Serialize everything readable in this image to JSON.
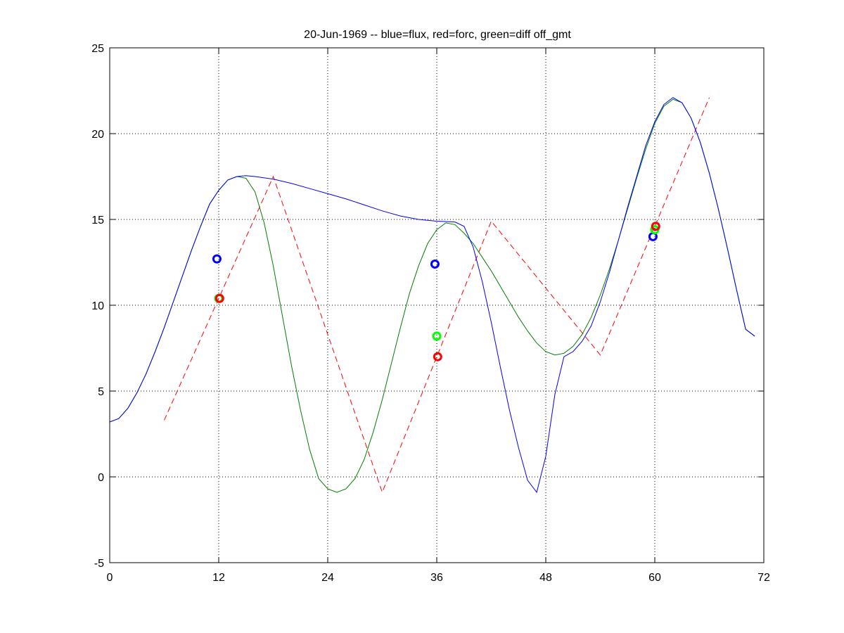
{
  "chart_data": {
    "type": "line",
    "title": "20-Jun-1969 -- blue=flux, red=forc, green=diff off_gmt",
    "xlabel": "",
    "ylabel": "",
    "xlim": [
      0,
      72
    ],
    "ylim": [
      -5,
      25
    ],
    "xticks": [
      0,
      12,
      24,
      36,
      48,
      60,
      72
    ],
    "yticks": [
      -5,
      0,
      5,
      10,
      15,
      20,
      25
    ],
    "grid": true,
    "grid_x_values": [
      12,
      24,
      36,
      48,
      60
    ],
    "grid_y_values": [
      0,
      5,
      10,
      15,
      20
    ],
    "colors": {
      "flux": "#0000ff",
      "forc": "#ff0000",
      "diff": "#008000",
      "diff_marker": "#00ff00",
      "axes": "#000000",
      "grid": "#000000"
    },
    "series": [
      {
        "key": "flux",
        "style": "solid",
        "color": "#0000ff",
        "x": [
          0,
          1,
          2,
          3,
          4,
          5,
          6,
          7,
          8,
          9,
          10,
          11,
          12,
          13,
          14,
          15,
          16,
          18,
          20,
          22,
          24,
          26,
          28,
          30,
          32,
          34,
          36,
          38,
          39,
          40,
          41,
          42,
          43,
          44,
          45,
          46,
          47,
          48,
          48.5,
          49,
          50,
          51,
          52,
          53,
          54,
          55,
          56,
          57,
          58,
          59,
          60,
          61,
          62,
          63,
          64,
          65,
          66,
          67,
          68,
          69,
          70,
          71
        ],
        "y": [
          3.2,
          3.4,
          4.0,
          4.9,
          6.0,
          7.3,
          8.7,
          10.2,
          11.7,
          13.2,
          14.6,
          15.9,
          16.7,
          17.3,
          17.5,
          17.55,
          17.5,
          17.35,
          17.1,
          16.8,
          16.5,
          16.2,
          15.85,
          15.5,
          15.2,
          15.0,
          14.9,
          14.85,
          14.6,
          13.4,
          11.4,
          9.0,
          6.4,
          3.9,
          1.7,
          -0.2,
          -0.9,
          1.2,
          3.0,
          4.8,
          7.0,
          7.3,
          7.9,
          8.8,
          10.2,
          11.9,
          13.8,
          15.7,
          17.5,
          19.3,
          20.7,
          21.7,
          22.1,
          21.8,
          20.9,
          19.5,
          17.7,
          15.6,
          13.3,
          10.9,
          8.6,
          8.2
        ]
      },
      {
        "key": "forc",
        "style": "dashed",
        "color": "#ff0000",
        "x": [
          6,
          18,
          30,
          42,
          54,
          66
        ],
        "y": [
          3.3,
          17.5,
          -0.9,
          14.9,
          7.1,
          22.1
        ]
      },
      {
        "key": "diff",
        "style": "solid",
        "color": "#008000",
        "x": [
          0,
          1,
          2,
          3,
          4,
          5,
          6,
          7,
          8,
          9,
          10,
          11,
          12,
          13,
          14,
          15,
          16,
          17,
          18,
          19,
          20,
          21,
          22,
          23,
          24,
          25,
          26,
          27,
          28,
          29,
          30,
          31,
          32,
          33,
          34,
          35,
          36,
          37,
          38,
          39,
          40,
          41,
          42,
          43,
          44,
          45,
          46,
          47,
          48,
          49,
          50,
          51,
          52,
          53,
          54,
          55,
          56,
          57,
          58,
          59,
          60,
          61,
          62,
          63,
          64,
          65,
          66,
          67,
          68,
          69,
          70,
          71
        ],
        "y": [
          3.2,
          3.4,
          4.0,
          4.9,
          6.0,
          7.3,
          8.7,
          10.2,
          11.7,
          13.2,
          14.6,
          15.9,
          16.7,
          17.3,
          17.5,
          17.4,
          16.6,
          14.8,
          12.3,
          9.4,
          6.5,
          3.9,
          1.6,
          -0.1,
          -0.7,
          -0.9,
          -0.7,
          -0.1,
          1.0,
          2.6,
          4.5,
          6.6,
          8.7,
          10.7,
          12.3,
          13.6,
          14.4,
          14.8,
          14.7,
          14.2,
          13.6,
          12.8,
          12.0,
          11.1,
          10.2,
          9.3,
          8.5,
          7.8,
          7.3,
          7.1,
          7.2,
          7.6,
          8.3,
          9.3,
          10.6,
          12.1,
          13.8,
          15.6,
          17.4,
          19.1,
          20.6,
          21.6,
          22.0,
          21.8,
          20.9,
          19.5,
          17.7,
          15.6,
          13.3,
          10.9,
          8.6,
          8.2
        ]
      }
    ],
    "markers": [
      {
        "series": "flux",
        "color": "#0000ff",
        "x": 11.8,
        "y": 12.7
      },
      {
        "series": "diff",
        "color": "#00ff00",
        "x": 12.0,
        "y": 10.4
      },
      {
        "series": "forc",
        "color": "#ff0000",
        "x": 12.1,
        "y": 10.4
      },
      {
        "series": "flux",
        "color": "#0000ff",
        "x": 35.8,
        "y": 12.4
      },
      {
        "series": "diff",
        "color": "#00ff00",
        "x": 36.0,
        "y": 8.2
      },
      {
        "series": "forc",
        "color": "#ff0000",
        "x": 36.1,
        "y": 7.0
      },
      {
        "series": "flux",
        "color": "#0000ff",
        "x": 59.8,
        "y": 14.0
      },
      {
        "series": "diff",
        "color": "#00ff00",
        "x": 60.0,
        "y": 14.4
      },
      {
        "series": "forc",
        "color": "#ff0000",
        "x": 60.1,
        "y": 14.6
      }
    ]
  }
}
